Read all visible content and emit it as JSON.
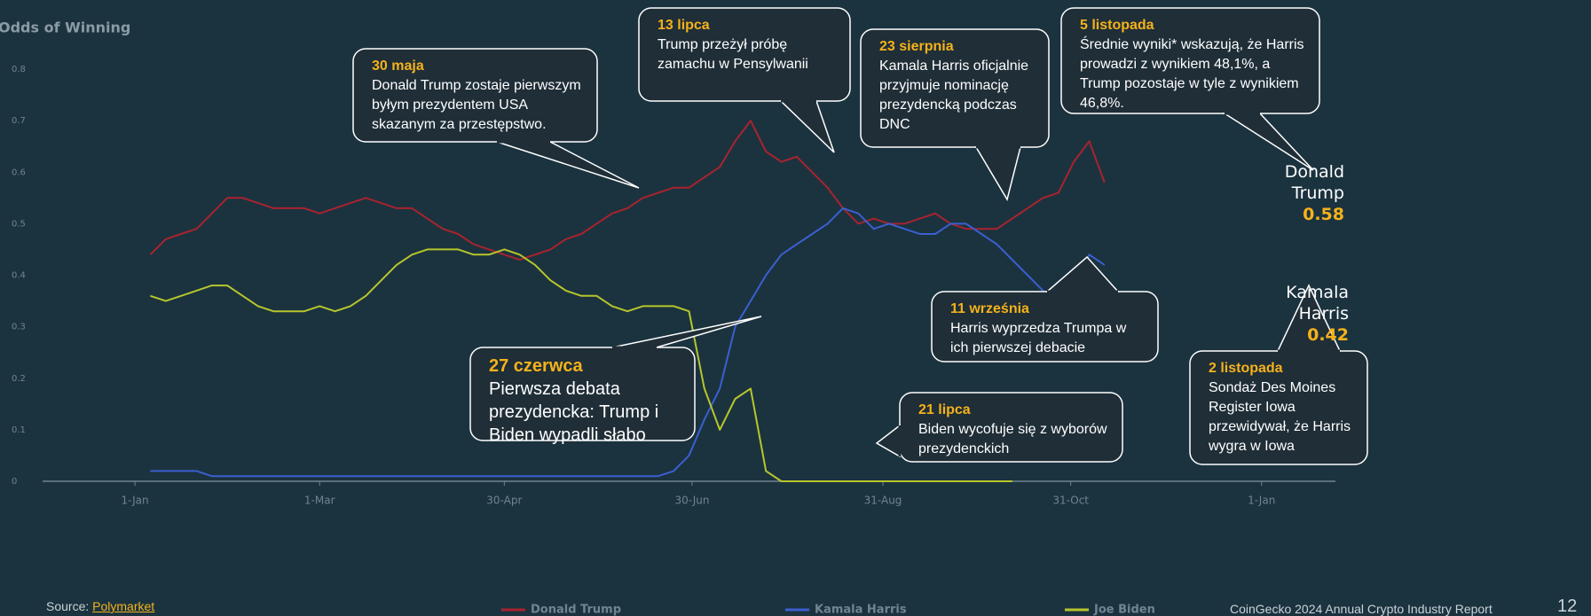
{
  "chart_data": {
    "type": "line",
    "title": "Odds of Winning",
    "x": [
      5,
      10,
      15,
      20,
      25,
      30,
      35,
      40,
      45,
      50,
      55,
      60,
      65,
      70,
      75,
      80,
      85,
      90,
      95,
      100,
      105,
      110,
      115,
      120,
      125,
      130,
      135,
      140,
      145,
      150,
      155,
      160,
      165,
      170,
      175,
      180,
      185,
      190,
      195,
      200,
      205,
      210,
      215,
      220,
      225,
      230,
      235,
      240,
      245,
      250,
      255,
      260,
      265,
      270,
      275,
      280,
      285,
      290,
      295,
      300,
      305,
      310,
      315
    ],
    "xlim": [
      -30,
      390
    ],
    "xticks": [
      {
        "value": 0,
        "label": "1-Jan"
      },
      {
        "value": 60,
        "label": "1-Mar"
      },
      {
        "value": 120,
        "label": "30-Apr"
      },
      {
        "value": 181,
        "label": "30-Jun"
      },
      {
        "value": 243,
        "label": "31-Aug"
      },
      {
        "value": 304,
        "label": "31-Oct"
      },
      {
        "value": 366,
        "label": "1-Jan"
      }
    ],
    "ylim": [
      0,
      0.8
    ],
    "yticks": [
      0,
      0.1,
      0.2,
      0.3,
      0.4,
      0.5,
      0.6,
      0.7,
      0.8
    ],
    "series": [
      {
        "name": "Donald Trump",
        "color": "#a8232f",
        "values": [
          0.44,
          0.47,
          0.48,
          0.49,
          0.52,
          0.55,
          0.55,
          0.54,
          0.53,
          0.53,
          0.53,
          0.52,
          0.53,
          0.54,
          0.55,
          0.54,
          0.53,
          0.53,
          0.51,
          0.49,
          0.48,
          0.46,
          0.45,
          0.44,
          0.43,
          0.44,
          0.45,
          0.47,
          0.48,
          0.5,
          0.52,
          0.53,
          0.55,
          0.56,
          0.57,
          0.57,
          0.59,
          0.61,
          0.66,
          0.7,
          0.64,
          0.62,
          0.63,
          0.6,
          0.57,
          0.53,
          0.5,
          0.51,
          0.5,
          0.5,
          0.51,
          0.52,
          0.5,
          0.49,
          0.49,
          0.49,
          0.51,
          0.53,
          0.55,
          0.56,
          0.62,
          0.66,
          0.58
        ]
      },
      {
        "name": "Kamala Harris",
        "color": "#3b5fd0",
        "values": [
          0.02,
          0.02,
          0.02,
          0.02,
          0.01,
          0.01,
          0.01,
          0.01,
          0.01,
          0.01,
          0.01,
          0.01,
          0.01,
          0.01,
          0.01,
          0.01,
          0.01,
          0.01,
          0.01,
          0.01,
          0.01,
          0.01,
          0.01,
          0.01,
          0.01,
          0.01,
          0.01,
          0.01,
          0.01,
          0.01,
          0.01,
          0.01,
          0.01,
          0.01,
          0.02,
          0.05,
          0.12,
          0.18,
          0.3,
          0.35,
          0.4,
          0.44,
          0.46,
          0.48,
          0.5,
          0.53,
          0.52,
          0.49,
          0.5,
          0.49,
          0.48,
          0.48,
          0.5,
          0.5,
          0.48,
          0.46,
          0.43,
          0.4,
          0.37,
          0.34,
          0.37,
          0.44,
          0.42
        ]
      },
      {
        "name": "Joe Biden",
        "color": "#b7c62b",
        "values": [
          0.36,
          0.35,
          0.36,
          0.37,
          0.38,
          0.38,
          0.36,
          0.34,
          0.33,
          0.33,
          0.33,
          0.34,
          0.33,
          0.34,
          0.36,
          0.39,
          0.42,
          0.44,
          0.45,
          0.45,
          0.45,
          0.44,
          0.44,
          0.45,
          0.44,
          0.42,
          0.39,
          0.37,
          0.36,
          0.36,
          0.34,
          0.33,
          0.34,
          0.34,
          0.34,
          0.33,
          0.18,
          0.1,
          0.16,
          0.18,
          0.02,
          0,
          0,
          0,
          0,
          0,
          0,
          0,
          0,
          0,
          0,
          0,
          0,
          0,
          0,
          0,
          0,
          null,
          null,
          null,
          null,
          null,
          null
        ]
      }
    ],
    "end_labels": [
      {
        "text": "Donald Trump",
        "value": 0.58
      },
      {
        "text": "Kamala Harris",
        "value": 0.42
      }
    ],
    "annotations": [
      {
        "date": "30 maja",
        "text": "Donald Trump zostaje pierwszym byłym prezydentem USA skazanym za przestępstwo."
      },
      {
        "date": "13 lipca",
        "text": "Trump przeżył próbę zamachu w Pensylwanii"
      },
      {
        "date": "23 sierpnia",
        "text": "Kamala Harris oficjalnie przyjmuje nominację prezydencką podczas DNC"
      },
      {
        "date": "5 listopada",
        "text": "Średnie wyniki* wskazują, że Harris prowadzi z wynikiem 48,1%, a Trump pozostaje w tyle z wynikiem 46,8%."
      },
      {
        "date": "27 czerwca",
        "text": "Pierwsza debata prezydencka: Trump i Biden wypadli słabo"
      },
      {
        "date": "11 września",
        "text": "Harris wyprzedza Trumpa w ich pierwszej debacie"
      },
      {
        "date": "21 lipca",
        "text": "Biden wycofuje się z wyborów prezydenckich"
      },
      {
        "date": "2 listopada",
        "text": "Sondaż Des Moines Register Iowa przewidywał, że Harris wygra w Iowa"
      }
    ],
    "source_label": "Source:",
    "source": "Polymarket",
    "footer": "CoinGecko 2024 Annual Crypto Industry Report",
    "page": "12"
  }
}
